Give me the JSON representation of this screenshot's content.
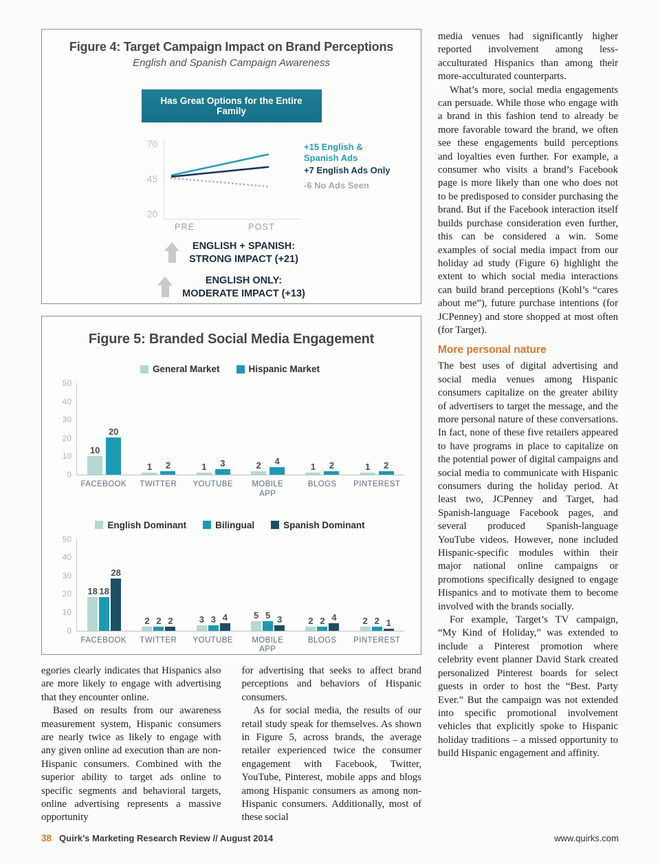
{
  "colors": {
    "accent_orange": "#e0762a",
    "banner_teal": "#1f7e95",
    "bar_light_teal": "#b4d8d2",
    "bar_mid_teal": "#1c9ab4",
    "bar_dark_teal": "#1c4f63",
    "line_teal": "#2a9cb7",
    "line_navy": "#18395b",
    "line_gray": "#a4abb0"
  },
  "figure5": {
    "title": "Figure 5: Branded Social Media Engagement"
  },
  "chart_data": [
    {
      "type": "line",
      "title": "Figure 4: Target Campaign Impact on Brand Perceptions",
      "subtitle": "English and Spanish Campaign Awareness",
      "banner": "Has Great Options for the Entire Family",
      "x": [
        "PRE",
        "POST"
      ],
      "ylim": [
        20,
        70
      ],
      "y_ticks": [
        70,
        45,
        20
      ],
      "grid": false,
      "legend_position": "right-annotations",
      "series": [
        {
          "name": "English & Spanish Ads",
          "label": "+15 English &\nSpanish Ads",
          "values": [
            48,
            63
          ],
          "color": "#2a9cb7",
          "style": "solid"
        },
        {
          "name": "English Ads Only",
          "label": "+7 English Ads Only",
          "values": [
            47,
            54
          ],
          "color": "#18395b",
          "style": "solid"
        },
        {
          "name": "No Ads Seen",
          "label": "-6 No Ads Seen",
          "values": [
            46,
            40
          ],
          "color": "#a4abb0",
          "style": "dotted"
        }
      ],
      "impact_notes": [
        "ENGLISH + SPANISH:\nSTRONG IMPACT (+21)",
        "ENGLISH ONLY:\nMODERATE IMPACT (+13)"
      ]
    },
    {
      "type": "bar",
      "categories": [
        "FACEBOOK",
        "TWITTER",
        "YOUTUBE",
        "MOBILE APP",
        "BLOGS",
        "PINTEREST"
      ],
      "ylim": [
        0,
        50
      ],
      "y_ticks": [
        0,
        10,
        20,
        30,
        40,
        50
      ],
      "grid": false,
      "legend_position": "top",
      "series": [
        {
          "name": "General Market",
          "color": "#b4d8d2",
          "values": [
            10,
            1,
            1,
            2,
            1,
            1
          ]
        },
        {
          "name": "Hispanic Market",
          "color": "#1c9ab4",
          "values": [
            20,
            2,
            3,
            4,
            2,
            2
          ]
        }
      ]
    },
    {
      "type": "bar",
      "categories": [
        "FACEBOOK",
        "TWITTER",
        "YOUTUBE",
        "MOBILE APP",
        "BLOGS",
        "PINTEREST"
      ],
      "ylim": [
        0,
        50
      ],
      "y_ticks": [
        0,
        10,
        20,
        30,
        40,
        50
      ],
      "grid": false,
      "legend_position": "top",
      "series": [
        {
          "name": "English Dominant",
          "color": "#b4d8d2",
          "values": [
            18,
            2,
            3,
            5,
            2,
            2
          ]
        },
        {
          "name": "Bilingual",
          "color": "#1c9ab4",
          "values": [
            18,
            2,
            3,
            5,
            2,
            2
          ]
        },
        {
          "name": "Spanish Dominant",
          "color": "#1c4f63",
          "values": [
            28,
            2,
            4,
            3,
            4,
            1
          ]
        }
      ]
    }
  ],
  "article": {
    "bottom_left": [
      "egories clearly indicates that Hispanics also are more likely to engage with advertising that they encounter online.",
      "Based on results from our awareness measurement system, Hispanic consumers are nearly twice as likely to engage with any given online ad execution than are non-Hispanic consumers. Combined with the superior ability to target ads online to specific segments and behavioral targets, online advertising represents a massive opportunity"
    ],
    "bottom_middle": [
      "for advertising that seeks to affect brand perceptions and behaviors of Hispanic consumers.",
      "As for social media, the results of our retail study speak for themselves. As shown in Figure 5, across brands, the average retailer experienced twice the consumer engagement with Facebook, Twitter, YouTube, Pinterest, mobile apps and blogs among Hispanic consumers as among non-Hispanic consumers. Additionally, most of these social"
    ],
    "right_top": [
      "media venues had significantly higher reported involvement among less-acculturated Hispanics than among their more-acculturated counterparts.",
      "What’s more, social media engagements can persuade. While those who engage with a brand in this fashion tend to already be more favorable toward the brand, we often see these engagements build perceptions and loyalties even further. For example, a consumer who visits a brand’s Facebook page is more likely than one who does not to be predisposed to consider purchasing the brand. But if the Facebook interaction itself builds purchase consideration even further, this can be considered a win. Some examples of social media impact from our holiday ad study (Figure 6) highlight the extent to which social media interactions can build brand perceptions (Kohl’s “cares about me”), future purchase intentions (for JCPenney) and store shopped at most often (for Target)."
    ],
    "heading": "More personal nature",
    "right_bottom": [
      "The best uses of digital advertising and social media venues among Hispanic consumers capitalize on the greater ability of advertisers to target the message, and the more personal nature of these conversations. In fact, none of these five retailers appeared to have programs in place to capitalize on the potential power of digital campaigns and social media to communicate with Hispanic consumers during the holiday period. At least two, JCPenney and Target, had Spanish-language Facebook pages, and several produced Spanish-language YouTube videos. However, none included Hispanic-specific modules within their major national online campaigns or promotions specifically designed to engage Hispanics and to motivate them to become involved with the brands socially.",
      "For example, Target’s TV campaign, “My Kind of Holiday,” was extended to include a Pinterest promotion where celebrity event planner David Stark created personalized Pinterest boards for select guests in order to host the “Best. Party Ever.” But the campaign was not extended into specific promotional involvement vehicles that explicitly spoke to Hispanic holiday traditions – a missed opportunity to build Hispanic engagement and affinity."
    ]
  },
  "footer": {
    "page_number": "38",
    "publication": "Quirk’s Marketing Research Review // August 2014",
    "website": "www.quirks.com"
  }
}
